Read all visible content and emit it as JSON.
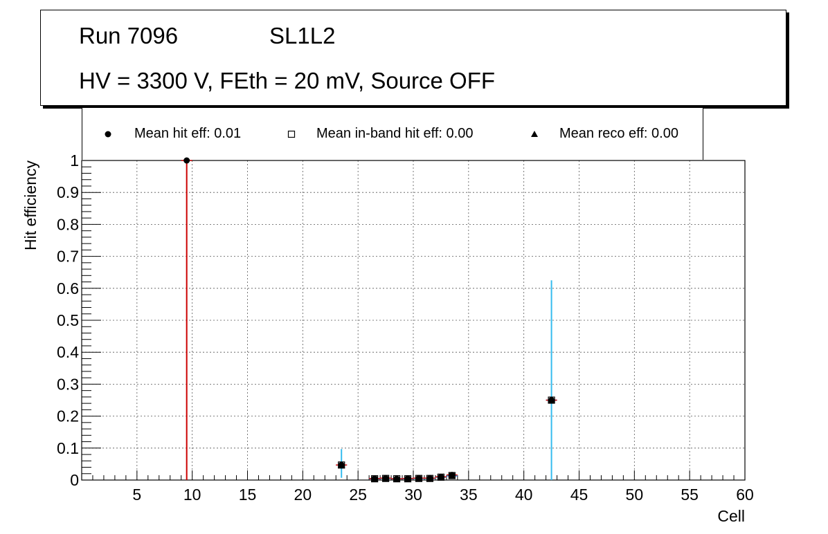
{
  "header": {
    "run_label": "Run 7096",
    "layer_label": "SL1L2",
    "conditions": "HV = 3300 V, FEth = 20 mV, Source OFF"
  },
  "legend": {
    "items": [
      {
        "label": "Mean hit  eff: 0.01",
        "marker": "filled-circle"
      },
      {
        "label": "Mean in-band hit eff: 0.00",
        "marker": "open-square"
      },
      {
        "label": "Mean reco eff: 0.00",
        "marker": "filled-triangle"
      }
    ]
  },
  "chart_data": {
    "type": "scatter",
    "xlabel": "Cell",
    "ylabel": "Hit efficiency",
    "xlim": [
      0,
      60
    ],
    "ylim": [
      0,
      1
    ],
    "x_ticks": [
      5,
      10,
      15,
      20,
      25,
      30,
      35,
      40,
      45,
      50,
      55,
      60
    ],
    "y_ticks": [
      0,
      0.1,
      0.2,
      0.3,
      0.4,
      0.5,
      0.6,
      0.7,
      0.8,
      0.9,
      1
    ],
    "y_tick_labels": [
      "0",
      "0.1",
      "0.2",
      "0.3",
      "0.4",
      "0.5",
      "0.6",
      "0.7",
      "0.8",
      "0.9",
      "1"
    ],
    "grid": true,
    "colors": {
      "hit_error": "#cc0000",
      "inband_error": "#33bbee",
      "reco_error": "#2255cc",
      "marker": "#000000"
    },
    "series": [
      {
        "name": "Mean hit  eff: 0.01",
        "marker": "filled-circle",
        "points": [
          {
            "x": 9.5,
            "y": 1.0,
            "err_low": 1.0,
            "err_high": 0.0
          },
          {
            "x": 23.5,
            "y": 0.047,
            "err_low": 0.005,
            "err_high": 0.005
          },
          {
            "x": 26.5,
            "y": 0.005,
            "err_low": 0.004,
            "err_high": 0.004
          },
          {
            "x": 27.5,
            "y": 0.006,
            "err_low": 0.004,
            "err_high": 0.004
          },
          {
            "x": 28.5,
            "y": 0.004,
            "err_low": 0.003,
            "err_high": 0.003
          },
          {
            "x": 29.5,
            "y": 0.005,
            "err_low": 0.003,
            "err_high": 0.003
          },
          {
            "x": 30.5,
            "y": 0.006,
            "err_low": 0.004,
            "err_high": 0.004
          },
          {
            "x": 31.5,
            "y": 0.006,
            "err_low": 0.004,
            "err_high": 0.004
          },
          {
            "x": 32.5,
            "y": 0.01,
            "err_low": 0.005,
            "err_high": 0.005
          },
          {
            "x": 33.5,
            "y": 0.016,
            "err_low": 0.006,
            "err_high": 0.006
          },
          {
            "x": 42.5,
            "y": 0.25,
            "err_low": 0.01,
            "err_high": 0.01
          }
        ]
      },
      {
        "name": "Mean in-band hit eff: 0.00",
        "marker": "open-square",
        "points": [
          {
            "x": 23.5,
            "y": 0.047,
            "err_low": 0.04,
            "err_high": 0.05
          },
          {
            "x": 26.5,
            "y": 0.004,
            "err_low": 0.004,
            "err_high": 0.004
          },
          {
            "x": 27.5,
            "y": 0.005,
            "err_low": 0.004,
            "err_high": 0.004
          },
          {
            "x": 28.5,
            "y": 0.004,
            "err_low": 0.003,
            "err_high": 0.003
          },
          {
            "x": 29.5,
            "y": 0.004,
            "err_low": 0.003,
            "err_high": 0.003
          },
          {
            "x": 30.5,
            "y": 0.005,
            "err_low": 0.004,
            "err_high": 0.004
          },
          {
            "x": 31.5,
            "y": 0.005,
            "err_low": 0.004,
            "err_high": 0.004
          },
          {
            "x": 32.5,
            "y": 0.009,
            "err_low": 0.005,
            "err_high": 0.005
          },
          {
            "x": 33.5,
            "y": 0.014,
            "err_low": 0.006,
            "err_high": 0.006
          },
          {
            "x": 42.5,
            "y": 0.25,
            "err_low": 0.25,
            "err_high": 0.375
          }
        ]
      },
      {
        "name": "Mean reco eff: 0.00",
        "marker": "filled-triangle",
        "points": [
          {
            "x": 23.5,
            "y": 0.047,
            "err_low": 0.01,
            "err_high": 0.01
          },
          {
            "x": 26.5,
            "y": 0.004,
            "err_low": 0.003,
            "err_high": 0.003
          },
          {
            "x": 27.5,
            "y": 0.005,
            "err_low": 0.003,
            "err_high": 0.003
          },
          {
            "x": 28.5,
            "y": 0.004,
            "err_low": 0.003,
            "err_high": 0.003
          },
          {
            "x": 29.5,
            "y": 0.004,
            "err_low": 0.003,
            "err_high": 0.003
          },
          {
            "x": 30.5,
            "y": 0.005,
            "err_low": 0.003,
            "err_high": 0.003
          },
          {
            "x": 31.5,
            "y": 0.005,
            "err_low": 0.003,
            "err_high": 0.003
          },
          {
            "x": 32.5,
            "y": 0.009,
            "err_low": 0.004,
            "err_high": 0.004
          },
          {
            "x": 33.5,
            "y": 0.013,
            "err_low": 0.005,
            "err_high": 0.005
          },
          {
            "x": 42.5,
            "y": 0.25,
            "err_low": 0.01,
            "err_high": 0.01
          }
        ]
      }
    ]
  }
}
